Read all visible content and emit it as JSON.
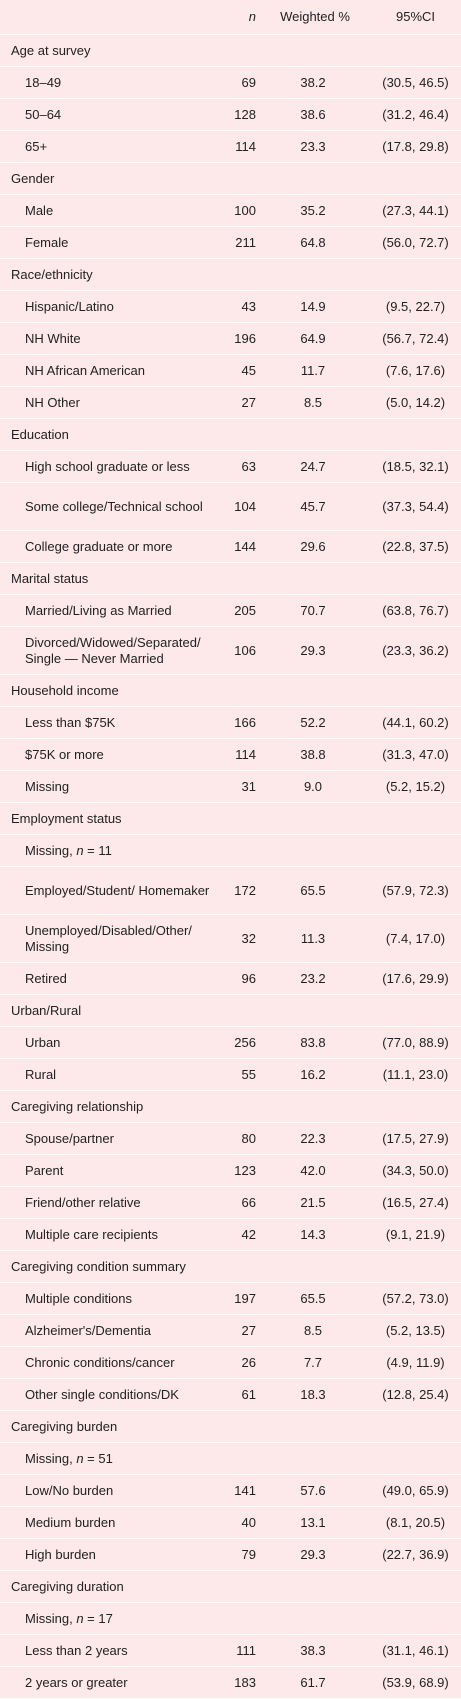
{
  "header": {
    "label_col": "",
    "n_col": "n",
    "weighted_col": "Weighted %",
    "ci_col": "95%CI"
  },
  "sections": [
    {
      "title": "Age at survey",
      "rows": [
        {
          "label": "18–49",
          "n": "69",
          "weighted": "38.2",
          "ci": "(30.5, 46.5)"
        },
        {
          "label": "50–64",
          "n": "128",
          "weighted": "38.6",
          "ci": "(31.2, 46.4)"
        },
        {
          "label": "65+",
          "n": "114",
          "weighted": "23.3",
          "ci": "(17.8, 29.8)"
        }
      ]
    },
    {
      "title": "Gender",
      "rows": [
        {
          "label": "Male",
          "n": "100",
          "weighted": "35.2",
          "ci": "(27.3, 44.1)"
        },
        {
          "label": "Female",
          "n": "211",
          "weighted": "64.8",
          "ci": "(56.0, 72.7)"
        }
      ]
    },
    {
      "title": "Race/ethnicity",
      "rows": [
        {
          "label": "Hispanic/Latino",
          "n": "43",
          "weighted": "14.9",
          "ci": "(9.5, 22.7)"
        },
        {
          "label": "NH White",
          "n": "196",
          "weighted": "64.9",
          "ci": "(56.7, 72.4)"
        },
        {
          "label": "NH African American",
          "n": "45",
          "weighted": "11.7",
          "ci": "(7.6, 17.6)"
        },
        {
          "label": "NH Other",
          "n": "27",
          "weighted": "8.5",
          "ci": "(5.0, 14.2)"
        }
      ]
    },
    {
      "title": "Education",
      "rows": [
        {
          "label": "High school graduate or less",
          "n": "63",
          "weighted": "24.7",
          "ci": "(18.5, 32.1)"
        },
        {
          "label": "Some college/Technical school",
          "n": "104",
          "weighted": "45.7",
          "ci": "(37.3, 54.4)",
          "tall": true
        },
        {
          "label": "College graduate or more",
          "n": "144",
          "weighted": "29.6",
          "ci": "(22.8, 37.5)"
        }
      ]
    },
    {
      "title": "Marital status",
      "rows": [
        {
          "label": "Married/Living as Married",
          "n": "205",
          "weighted": "70.7",
          "ci": "(63.8, 76.7)"
        },
        {
          "label": "Divorced/Widowed/Separated/ Single — Never Married",
          "n": "106",
          "weighted": "29.3",
          "ci": "(23.3, 36.2)",
          "tall": true
        }
      ]
    },
    {
      "title": "Household income",
      "rows": [
        {
          "label": "Less than $75K",
          "n": "166",
          "weighted": "52.2",
          "ci": "(44.1, 60.2)"
        },
        {
          "label": "$75K or more",
          "n": "114",
          "weighted": "38.8",
          "ci": "(31.3, 47.0)"
        },
        {
          "label": "Missing",
          "n": "31",
          "weighted": "9.0",
          "ci": "(5.2, 15.2)"
        }
      ]
    },
    {
      "title": "Employment status",
      "rows": [
        {
          "label": "Missing,",
          "label_n": "n",
          "label_suffix": " = 11",
          "n": "",
          "weighted": "",
          "ci": ""
        },
        {
          "label": "Employed/Student/ Homemaker",
          "n": "172",
          "weighted": "65.5",
          "ci": "(57.9, 72.3)",
          "tall": true
        },
        {
          "label": "Unemployed/Disabled/Other/ Missing",
          "n": "32",
          "weighted": "11.3",
          "ci": "(7.4, 17.0)",
          "tall": true
        },
        {
          "label": "Retired",
          "n": "96",
          "weighted": "23.2",
          "ci": "(17.6, 29.9)"
        }
      ]
    },
    {
      "title": "Urban/Rural",
      "rows": [
        {
          "label": "Urban",
          "n": "256",
          "weighted": "83.8",
          "ci": "(77.0, 88.9)"
        },
        {
          "label": "Rural",
          "n": "55",
          "weighted": "16.2",
          "ci": "(11.1, 23.0)"
        }
      ]
    },
    {
      "title": "Caregiving relationship",
      "rows": [
        {
          "label": "Spouse/partner",
          "n": "80",
          "weighted": "22.3",
          "ci": "(17.5, 27.9)"
        },
        {
          "label": "Parent",
          "n": "123",
          "weighted": "42.0",
          "ci": "(34.3, 50.0)"
        },
        {
          "label": "Friend/other relative",
          "n": "66",
          "weighted": "21.5",
          "ci": "(16.5, 27.4)"
        },
        {
          "label": "Multiple care recipients",
          "n": "42",
          "weighted": "14.3",
          "ci": "(9.1, 21.9)"
        }
      ]
    },
    {
      "title": "Caregiving condition summary",
      "rows": [
        {
          "label": "Multiple conditions",
          "n": "197",
          "weighted": "65.5",
          "ci": "(57.2, 73.0)"
        },
        {
          "label": "Alzheimer's/Dementia",
          "n": "27",
          "weighted": "8.5",
          "ci": "(5.2, 13.5)"
        },
        {
          "label": "Chronic conditions/cancer",
          "n": "26",
          "weighted": "7.7",
          "ci": "(4.9, 11.9)"
        },
        {
          "label": "Other single conditions/DK",
          "n": "61",
          "weighted": "18.3",
          "ci": "(12.8, 25.4)"
        }
      ]
    },
    {
      "title": "Caregiving burden",
      "rows": [
        {
          "label": "Missing,",
          "label_n": "n",
          "label_suffix": " = 51",
          "n": "",
          "weighted": "",
          "ci": ""
        },
        {
          "label": "Low/No burden",
          "n": "141",
          "weighted": "57.6",
          "ci": "(49.0, 65.9)"
        },
        {
          "label": "Medium burden",
          "n": "40",
          "weighted": "13.1",
          "ci": "(8.1, 20.5)"
        },
        {
          "label": "High burden",
          "n": "79",
          "weighted": "29.3",
          "ci": "(22.7, 36.9)"
        }
      ]
    },
    {
      "title": "Caregiving duration",
      "rows": [
        {
          "label": "Missing,",
          "label_n": "n",
          "label_suffix": " = 17",
          "n": "",
          "weighted": "",
          "ci": ""
        },
        {
          "label": "Less than 2 years",
          "n": "111",
          "weighted": "38.3",
          "ci": "(31.1, 46.1)"
        },
        {
          "label": "2 years or greater",
          "n": "183",
          "weighted": "61.7",
          "ci": "(53.9, 68.9)"
        }
      ]
    }
  ]
}
